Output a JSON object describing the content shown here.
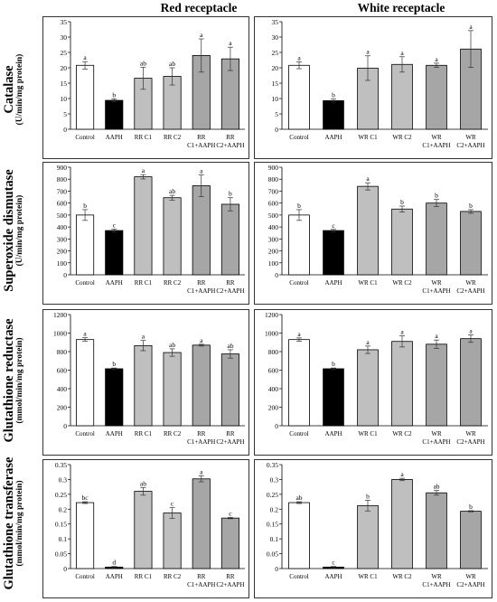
{
  "column_titles": [
    "Red receptacle",
    "White receptacle"
  ],
  "rows": [
    {
      "title": "Catalase",
      "unit": "(U/min/mg protein)"
    },
    {
      "title": "Superoxide dismutase",
      "unit": "(U/min/mg protein)"
    },
    {
      "title": "Glutathione reductase",
      "unit": "(mmol/min/mg protein)"
    },
    {
      "title": "Glutathione transferase",
      "unit": "(mmol/min/mg protein)"
    }
  ],
  "colors": {
    "control": "#ffffff",
    "aaph": "#000000",
    "c": "#bfbfbf",
    "caaph": "#a6a6a6",
    "edge": "#000000"
  },
  "chart_data": [
    {
      "type": "bar",
      "row": 0,
      "col": 0,
      "ylim": [
        0,
        35
      ],
      "ticks": [
        0,
        5,
        10,
        15,
        20,
        25,
        30,
        35
      ],
      "categories": [
        "Control",
        "AAPH",
        "RR C1",
        "RR C2",
        "RR C1+AAPH",
        "RR C2+AAPH"
      ],
      "values": [
        20.8,
        9.4,
        16.6,
        17.2,
        24.0,
        22.9
      ],
      "errors": [
        1.2,
        0.5,
        3.6,
        2.8,
        5.4,
        3.8
      ],
      "letters": [
        "a",
        "b",
        "ab",
        "ab",
        "a",
        "a"
      ]
    },
    {
      "type": "bar",
      "row": 0,
      "col": 1,
      "ylim": [
        0,
        35
      ],
      "ticks": [
        0,
        5,
        10,
        15,
        20,
        25,
        30,
        35
      ],
      "categories": [
        "Control",
        "AAPH",
        "WR C1",
        "WR C2",
        "WR C1+AAPH",
        "WR C2+AAPH"
      ],
      "values": [
        20.8,
        9.3,
        19.9,
        21.1,
        20.8,
        26.1
      ],
      "errors": [
        1.1,
        0.5,
        4.0,
        2.5,
        0.7,
        6.0
      ],
      "letters": [
        "a",
        "b",
        "a",
        "a",
        "a",
        "a"
      ]
    },
    {
      "type": "bar",
      "row": 1,
      "col": 0,
      "ylim": [
        0,
        900
      ],
      "ticks": [
        0,
        100,
        200,
        300,
        400,
        500,
        600,
        700,
        800,
        900
      ],
      "categories": [
        "Control",
        "AAPH",
        "RR C1",
        "RR C2",
        "RR C1+AAPH",
        "RR C2+AAPH"
      ],
      "values": [
        500,
        370,
        820,
        645,
        745,
        590
      ],
      "errors": [
        45,
        12,
        18,
        20,
        90,
        55
      ],
      "letters": [
        "b",
        "c",
        "a",
        "ab",
        "a",
        "b"
      ]
    },
    {
      "type": "bar",
      "row": 1,
      "col": 1,
      "ylim": [
        0,
        900
      ],
      "ticks": [
        0,
        100,
        200,
        300,
        400,
        500,
        600,
        700,
        800,
        900
      ],
      "categories": [
        "Control",
        "AAPH",
        "WR C1",
        "WR C2",
        "WR C1+AAPH",
        "WR C2+AAPH"
      ],
      "values": [
        500,
        370,
        740,
        550,
        600,
        530
      ],
      "errors": [
        45,
        10,
        30,
        25,
        30,
        15
      ],
      "letters": [
        "b",
        "c",
        "a",
        "b",
        "b",
        "b"
      ]
    },
    {
      "type": "bar",
      "row": 2,
      "col": 0,
      "ylim": [
        0,
        1200
      ],
      "ticks": [
        0,
        200,
        400,
        600,
        800,
        1000,
        1200
      ],
      "categories": [
        "Control",
        "AAPH",
        "RR C1",
        "RR C2",
        "RR C1+AAPH",
        "RR C2+AAPH"
      ],
      "values": [
        930,
        615,
        865,
        790,
        870,
        775
      ],
      "errors": [
        20,
        8,
        55,
        40,
        10,
        45
      ],
      "letters": [
        "a",
        "b",
        "a",
        "ab",
        "a",
        "ab"
      ]
    },
    {
      "type": "bar",
      "row": 2,
      "col": 1,
      "ylim": [
        0,
        1200
      ],
      "ticks": [
        0,
        200,
        400,
        600,
        800,
        1000,
        1200
      ],
      "categories": [
        "Control",
        "AAPH",
        "WR C1",
        "WR C2",
        "WR C1+AAPH",
        "WR C2+AAPH"
      ],
      "values": [
        930,
        615,
        820,
        910,
        880,
        940
      ],
      "errors": [
        18,
        8,
        40,
        60,
        45,
        40
      ],
      "letters": [
        "a",
        "b",
        "a",
        "a",
        "a",
        "a"
      ]
    },
    {
      "type": "bar",
      "row": 3,
      "col": 0,
      "ylim": [
        0,
        0.35
      ],
      "ticks": [
        0,
        0.05,
        0.1,
        0.15,
        0.2,
        0.25,
        0.3,
        0.35
      ],
      "tick_labels": [
        "0",
        "0.05",
        "0.1",
        "0.15",
        "0.2",
        "0.25",
        "0.3",
        "0.35"
      ],
      "categories": [
        "Control",
        "AAPH",
        "RR C1",
        "RR C2",
        "RR C1+AAPH",
        "RR C2+AAPH"
      ],
      "values": [
        0.222,
        0.005,
        0.26,
        0.187,
        0.302,
        0.17
      ],
      "errors": [
        0.003,
        0.002,
        0.013,
        0.018,
        0.01,
        0.002
      ],
      "letters": [
        "bc",
        "d",
        "ab",
        "c",
        "a",
        "c"
      ]
    },
    {
      "type": "bar",
      "row": 3,
      "col": 1,
      "ylim": [
        0,
        0.35
      ],
      "ticks": [
        0,
        0.05,
        0.1,
        0.15,
        0.2,
        0.25,
        0.3,
        0.35
      ],
      "tick_labels": [
        "0",
        "0.05",
        "0.1",
        "0.15",
        "0.2",
        "0.25",
        "0.3",
        "0.35"
      ],
      "categories": [
        "Control",
        "AAPH",
        "WR C1",
        "WR C2",
        "WR C1+AAPH",
        "WR C2+AAPH"
      ],
      "values": [
        0.222,
        0.005,
        0.212,
        0.3,
        0.255,
        0.193
      ],
      "errors": [
        0.003,
        0.002,
        0.018,
        0.004,
        0.008,
        0.002
      ],
      "letters": [
        "ab",
        "c",
        "b",
        "a",
        "ab",
        "b"
      ]
    }
  ]
}
